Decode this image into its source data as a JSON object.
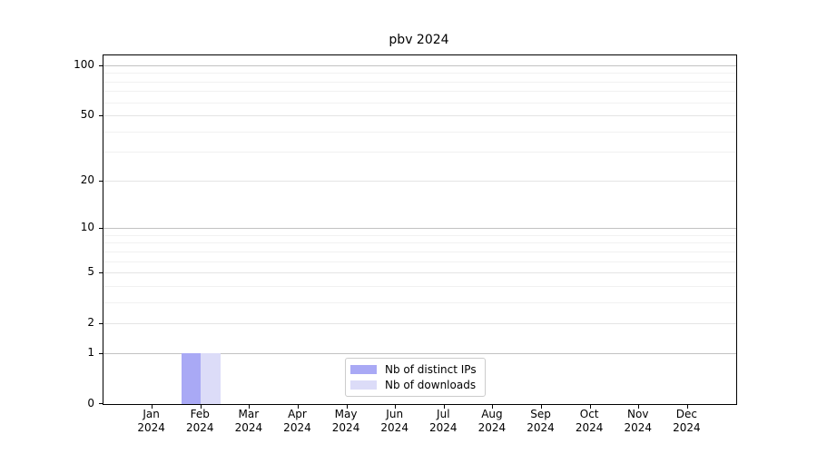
{
  "title": "pbv 2024",
  "chart_data": {
    "type": "bar",
    "title": "pbv 2024",
    "categories": [
      "Jan 2024",
      "Feb 2024",
      "Mar 2024",
      "Apr 2024",
      "May 2024",
      "Jun 2024",
      "Jul 2024",
      "Aug 2024",
      "Sep 2024",
      "Oct 2024",
      "Nov 2024",
      "Dec 2024"
    ],
    "x_tick_labels": [
      {
        "month": "Jan",
        "year": "2024"
      },
      {
        "month": "Feb",
        "year": "2024"
      },
      {
        "month": "Mar",
        "year": "2024"
      },
      {
        "month": "Apr",
        "year": "2024"
      },
      {
        "month": "May",
        "year": "2024"
      },
      {
        "month": "Jun",
        "year": "2024"
      },
      {
        "month": "Jul",
        "year": "2024"
      },
      {
        "month": "Aug",
        "year": "2024"
      },
      {
        "month": "Sep",
        "year": "2024"
      },
      {
        "month": "Oct",
        "year": "2024"
      },
      {
        "month": "Nov",
        "year": "2024"
      },
      {
        "month": "Dec",
        "year": "2024"
      }
    ],
    "series": [
      {
        "name": "Nb of distinct IPs",
        "color": "#a9a9f5",
        "values": [
          0,
          1,
          0,
          0,
          0,
          0,
          0,
          0,
          0,
          0,
          0,
          0
        ]
      },
      {
        "name": "Nb of downloads",
        "color": "#dcdcf8",
        "values": [
          0,
          1,
          0,
          0,
          0,
          0,
          0,
          0,
          0,
          0,
          0,
          0
        ]
      }
    ],
    "yscale": "log1p",
    "y_major_ticks": [
      0,
      1,
      2,
      5,
      10,
      20,
      50,
      100
    ],
    "y_minor_ticks": [
      3,
      4,
      6,
      7,
      8,
      9,
      30,
      40,
      60,
      70,
      80,
      90
    ],
    "ylim": [
      0,
      115
    ],
    "xlabel": "",
    "ylabel": "",
    "grid": "horizontal-major-and-minor",
    "legend_position": "lower center"
  },
  "legend": {
    "items": [
      {
        "label": "Nb of distinct IPs",
        "color": "#a9a9f5"
      },
      {
        "label": "Nb of downloads",
        "color": "#dcdcf8"
      }
    ]
  },
  "colors": {
    "axis": "#000000",
    "grid_power10": "#c2c2c2",
    "grid_major": "#e4e4e4",
    "grid_minor": "#f1f1f1",
    "bar_distinct_ips": "#a9a9f5",
    "bar_downloads": "#dcdcf8",
    "background": "#ffffff"
  }
}
